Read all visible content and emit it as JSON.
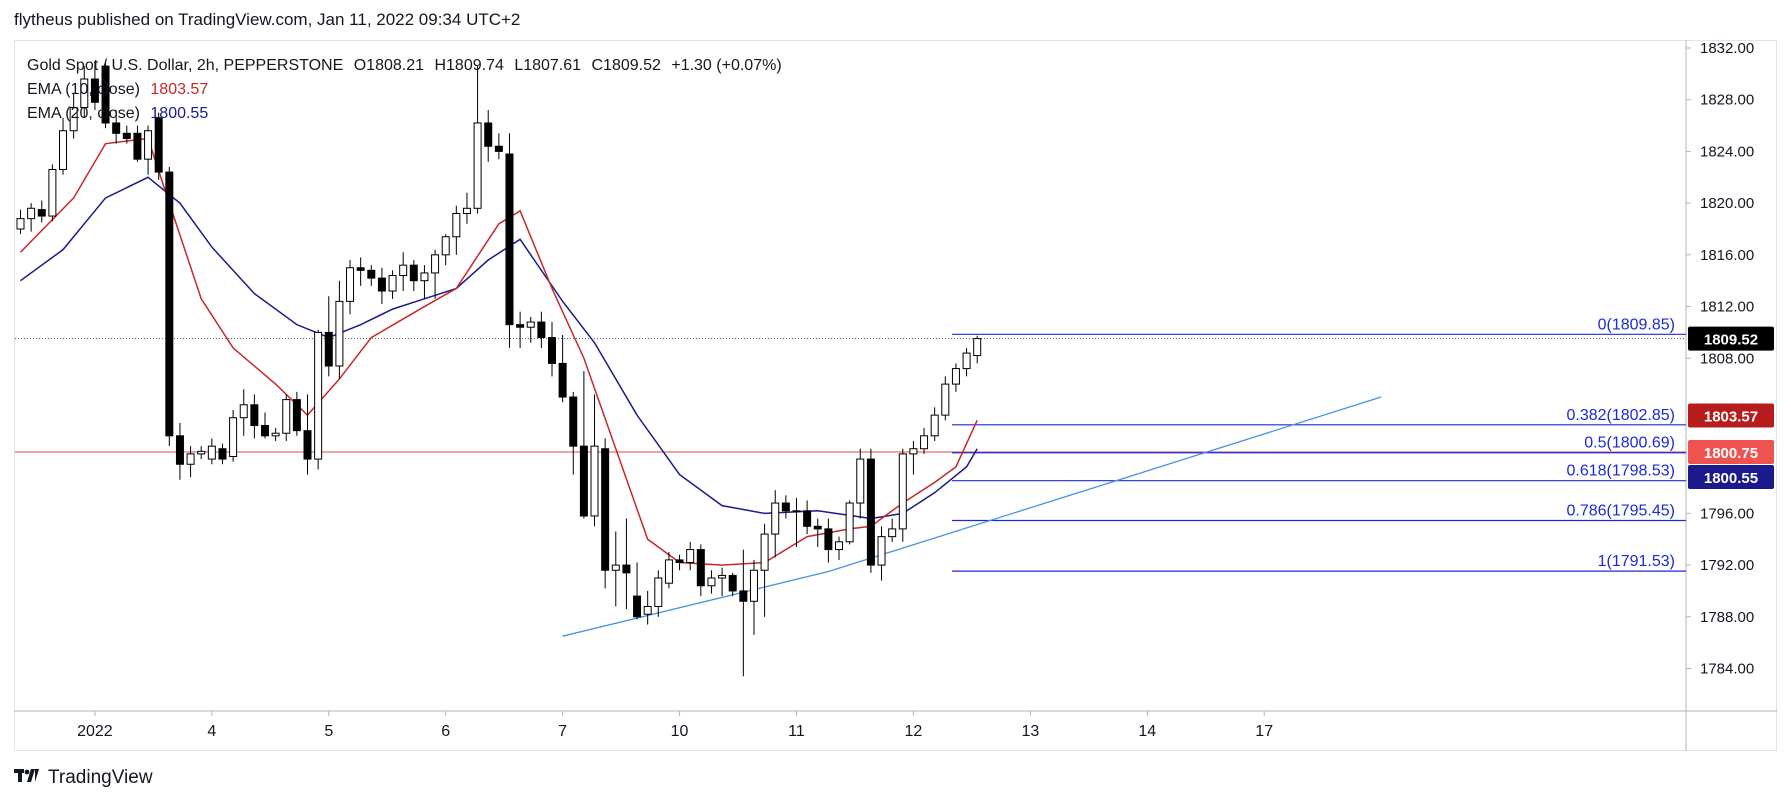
{
  "header": {
    "publish_text": "flytheus published on TradingView.com, Jan 11, 2022 09:34 UTC+2"
  },
  "legend": {
    "symbol": "Gold Spot / U.S. Dollar, 2h, PEPPERSTONE",
    "open": "O1808.21",
    "high": "H1809.74",
    "low": "L1807.61",
    "close": "C1809.52",
    "change": "+1.30 (+0.07%)",
    "ema10_label": "EMA (10, close)",
    "ema10_value": "1803.57",
    "ema20_label": "EMA (20, close)",
    "ema20_value": "1800.55"
  },
  "footer": {
    "brand": "TradingView",
    "logo_icon": "tradingview-logo-icon"
  },
  "colors": {
    "up_body": "#ffffff",
    "down_body": "#000000",
    "wick": "#000000",
    "ema10": "#c62828",
    "ema20": "#1a1a8c",
    "fib": "#1a2bd6",
    "trendline": "#4a90e2",
    "support": "#f06a6a",
    "label_last": "#000000",
    "label_ema10": "#b71c1c",
    "label_support": "#ef5350",
    "label_ema20": "#1a1a8c"
  },
  "chart_data": {
    "type": "candlestick",
    "symbol": "Gold Spot / U.S. Dollar",
    "timeframe": "2h",
    "ylim": [
      1782,
      1833
    ],
    "y_ticks": [
      "1832.00",
      "1828.00",
      "1824.00",
      "1820.00",
      "1816.00",
      "1812.00",
      "1808.00",
      "1796.00",
      "1792.00",
      "1788.00",
      "1784.00"
    ],
    "x_tick_labels": [
      "2022",
      "4",
      "5",
      "6",
      "7",
      "10",
      "11",
      "12",
      "13",
      "14",
      "17"
    ],
    "x_tick_bar_index": [
      7,
      18,
      29,
      40,
      51,
      62,
      73,
      84,
      95,
      106,
      117
    ],
    "candles": [
      [
        1818.0,
        1819.5,
        1817.6,
        1818.8
      ],
      [
        1818.8,
        1820.0,
        1817.8,
        1819.6
      ],
      [
        1819.5,
        1820.2,
        1818.5,
        1819.0
      ],
      [
        1819.0,
        1823.0,
        1818.6,
        1822.6
      ],
      [
        1822.6,
        1826.6,
        1822.2,
        1825.6
      ],
      [
        1825.6,
        1828.5,
        1825.0,
        1827.4
      ],
      [
        1827.4,
        1830.6,
        1826.6,
        1829.6
      ],
      [
        1829.6,
        1831.0,
        1827.2,
        1827.8
      ],
      [
        1830.6,
        1831.0,
        1825.8,
        1826.2
      ],
      [
        1826.2,
        1827.2,
        1824.6,
        1825.4
      ],
      [
        1825.4,
        1826.0,
        1824.6,
        1825.0
      ],
      [
        1825.4,
        1826.0,
        1823.2,
        1823.4
      ],
      [
        1823.4,
        1826.0,
        1822.2,
        1825.6
      ],
      [
        1826.6,
        1827.0,
        1821.8,
        1822.4
      ],
      [
        1822.4,
        1822.8,
        1801.2,
        1802.0
      ],
      [
        1802.0,
        1803.0,
        1798.6,
        1799.8
      ],
      [
        1799.8,
        1801.2,
        1798.8,
        1800.6
      ],
      [
        1800.6,
        1801.2,
        1800.2,
        1800.8
      ],
      [
        1800.2,
        1801.8,
        1799.8,
        1801.2
      ],
      [
        1801.0,
        1801.4,
        1799.8,
        1800.2
      ],
      [
        1800.4,
        1804.0,
        1800.0,
        1803.4
      ],
      [
        1803.4,
        1805.6,
        1802.0,
        1804.4
      ],
      [
        1804.4,
        1805.2,
        1801.8,
        1802.8
      ],
      [
        1802.8,
        1803.8,
        1801.8,
        1802.0
      ],
      [
        1802.0,
        1802.6,
        1801.6,
        1802.2
      ],
      [
        1802.2,
        1805.2,
        1801.6,
        1804.8
      ],
      [
        1804.8,
        1805.4,
        1802.0,
        1802.4
      ],
      [
        1802.4,
        1805.2,
        1799.0,
        1800.2
      ],
      [
        1800.2,
        1810.2,
        1799.4,
        1810.0
      ],
      [
        1810.0,
        1812.8,
        1806.6,
        1807.4
      ],
      [
        1807.4,
        1814.0,
        1806.4,
        1812.4
      ],
      [
        1812.4,
        1815.6,
        1811.4,
        1815.0
      ],
      [
        1815.0,
        1815.8,
        1813.6,
        1814.8
      ],
      [
        1814.8,
        1815.2,
        1813.6,
        1814.2
      ],
      [
        1814.2,
        1815.0,
        1812.2,
        1813.2
      ],
      [
        1813.2,
        1814.8,
        1812.6,
        1814.4
      ],
      [
        1814.4,
        1816.2,
        1813.2,
        1815.2
      ],
      [
        1815.2,
        1815.6,
        1813.2,
        1814.0
      ],
      [
        1814.0,
        1815.2,
        1812.6,
        1814.6
      ],
      [
        1814.6,
        1816.4,
        1812.6,
        1816.0
      ],
      [
        1816.0,
        1817.6,
        1815.2,
        1817.4
      ],
      [
        1817.4,
        1819.8,
        1816.0,
        1819.2
      ],
      [
        1819.2,
        1820.8,
        1818.4,
        1819.6
      ],
      [
        1819.6,
        1830.6,
        1819.2,
        1826.2
      ],
      [
        1826.2,
        1827.2,
        1823.2,
        1824.4
      ],
      [
        1824.4,
        1825.4,
        1823.4,
        1824.0
      ],
      [
        1823.8,
        1825.4,
        1808.8,
        1810.6
      ],
      [
        1810.6,
        1811.6,
        1808.8,
        1810.4
      ],
      [
        1810.4,
        1811.2,
        1809.2,
        1810.8
      ],
      [
        1810.8,
        1811.6,
        1808.8,
        1809.6
      ],
      [
        1809.6,
        1810.8,
        1806.6,
        1807.6
      ],
      [
        1807.6,
        1809.8,
        1804.6,
        1805.0
      ],
      [
        1805.0,
        1805.4,
        1799.0,
        1801.2
      ],
      [
        1801.2,
        1807.0,
        1795.6,
        1795.8
      ],
      [
        1795.8,
        1805.2,
        1795.0,
        1801.2
      ],
      [
        1801.0,
        1801.8,
        1790.2,
        1791.6
      ],
      [
        1791.6,
        1794.6,
        1788.8,
        1792.0
      ],
      [
        1792.0,
        1795.6,
        1788.6,
        1791.4
      ],
      [
        1789.6,
        1792.2,
        1787.8,
        1788.0
      ],
      [
        1788.2,
        1790.0,
        1787.4,
        1788.8
      ],
      [
        1788.8,
        1791.6,
        1788.0,
        1791.0
      ],
      [
        1790.6,
        1793.0,
        1790.2,
        1792.4
      ],
      [
        1792.4,
        1792.8,
        1791.6,
        1792.2
      ],
      [
        1792.2,
        1793.8,
        1791.6,
        1793.2
      ],
      [
        1793.2,
        1793.6,
        1789.6,
        1790.4
      ],
      [
        1790.4,
        1791.6,
        1789.8,
        1791.0
      ],
      [
        1791.0,
        1791.8,
        1789.6,
        1791.2
      ],
      [
        1791.2,
        1791.4,
        1789.6,
        1790.0
      ],
      [
        1790.0,
        1793.2,
        1783.4,
        1789.2
      ],
      [
        1789.2,
        1792.4,
        1786.6,
        1791.6
      ],
      [
        1791.6,
        1795.2,
        1788.0,
        1794.4
      ],
      [
        1794.4,
        1797.8,
        1792.6,
        1796.8
      ],
      [
        1796.8,
        1797.4,
        1795.6,
        1796.2
      ],
      [
        1796.2,
        1797.2,
        1793.4,
        1796.2
      ],
      [
        1796.2,
        1797.0,
        1794.4,
        1795.0
      ],
      [
        1795.0,
        1795.6,
        1793.4,
        1794.8
      ],
      [
        1794.8,
        1795.6,
        1792.2,
        1793.2
      ],
      [
        1793.2,
        1794.2,
        1792.4,
        1793.8
      ],
      [
        1793.8,
        1797.0,
        1793.6,
        1796.8
      ],
      [
        1796.8,
        1801.0,
        1795.6,
        1800.2
      ],
      [
        1800.2,
        1801.0,
        1791.4,
        1792.0
      ],
      [
        1792.0,
        1795.0,
        1790.8,
        1794.2
      ],
      [
        1794.2,
        1795.6,
        1793.8,
        1794.8
      ],
      [
        1794.8,
        1801.0,
        1793.8,
        1800.6
      ],
      [
        1800.6,
        1801.6,
        1799.0,
        1801.0
      ],
      [
        1801.0,
        1802.6,
        1800.6,
        1802.0
      ],
      [
        1802.0,
        1804.2,
        1801.6,
        1803.6
      ],
      [
        1803.6,
        1806.6,
        1803.2,
        1806.0
      ],
      [
        1806.0,
        1807.6,
        1805.4,
        1807.2
      ],
      [
        1807.2,
        1808.8,
        1806.6,
        1808.4
      ],
      [
        1808.21,
        1809.74,
        1807.61,
        1809.52
      ]
    ],
    "ema10": [
      [
        0,
        1816.2
      ],
      [
        5,
        1820.4
      ],
      [
        8,
        1824.6
      ],
      [
        12,
        1825.0
      ],
      [
        14,
        1820.0
      ],
      [
        17,
        1812.6
      ],
      [
        20,
        1808.8
      ],
      [
        24,
        1806.0
      ],
      [
        27,
        1803.6
      ],
      [
        30,
        1806.4
      ],
      [
        33,
        1809.6
      ],
      [
        38,
        1812.0
      ],
      [
        41,
        1813.4
      ],
      [
        45,
        1818.4
      ],
      [
        47,
        1819.4
      ],
      [
        50,
        1813.4
      ],
      [
        53,
        1808.0
      ],
      [
        56,
        1801.0
      ],
      [
        59,
        1794.0
      ],
      [
        62,
        1792.2
      ],
      [
        66,
        1792.0
      ],
      [
        70,
        1792.2
      ],
      [
        74,
        1794.2
      ],
      [
        78,
        1794.8
      ],
      [
        80,
        1795.0
      ],
      [
        83,
        1796.8
      ],
      [
        86,
        1798.4
      ],
      [
        88,
        1799.6
      ],
      [
        90,
        1803.2
      ]
    ],
    "ema20": [
      [
        0,
        1814.0
      ],
      [
        4,
        1816.4
      ],
      [
        8,
        1820.4
      ],
      [
        12,
        1822.0
      ],
      [
        15,
        1820.0
      ],
      [
        18,
        1816.6
      ],
      [
        22,
        1813.0
      ],
      [
        26,
        1810.6
      ],
      [
        29,
        1809.6
      ],
      [
        32,
        1810.6
      ],
      [
        35,
        1811.8
      ],
      [
        38,
        1812.6
      ],
      [
        41,
        1813.4
      ],
      [
        44,
        1815.6
      ],
      [
        47,
        1817.2
      ],
      [
        51,
        1812.4
      ],
      [
        54,
        1809.2
      ],
      [
        58,
        1803.6
      ],
      [
        62,
        1799.0
      ],
      [
        66,
        1796.6
      ],
      [
        70,
        1796.0
      ],
      [
        75,
        1796.2
      ],
      [
        80,
        1795.6
      ],
      [
        83,
        1796.0
      ],
      [
        86,
        1797.6
      ],
      [
        89,
        1799.6
      ],
      [
        90,
        1801.0
      ]
    ],
    "fib_levels": [
      {
        "ratio": "0",
        "price": 1809.85,
        "label": "0(1809.85)"
      },
      {
        "ratio": "0.382",
        "price": 1802.85,
        "label": "0.382(1802.85)"
      },
      {
        "ratio": "0.5",
        "price": 1800.69,
        "label": "0.5(1800.69)"
      },
      {
        "ratio": "0.618",
        "price": 1798.53,
        "label": "0.618(1798.53)"
      },
      {
        "ratio": "0.786",
        "price": 1795.45,
        "label": "0.786(1795.45)"
      },
      {
        "ratio": "1",
        "price": 1791.53,
        "label": "1(1791.53)"
      }
    ],
    "trendline": [
      [
        51,
        1786.5
      ],
      [
        76,
        1791.5
      ],
      [
        128,
        1805.0
      ]
    ],
    "support_level": 1800.75,
    "price_labels": [
      {
        "text": "1809.52",
        "price": 1809.52,
        "kind": "last"
      },
      {
        "text": "1803.57",
        "price": 1803.57,
        "kind": "ema10"
      },
      {
        "text": "1800.75",
        "price": 1800.75,
        "kind": "support"
      },
      {
        "text": "1800.55",
        "price": 1800.55,
        "kind": "ema20"
      }
    ]
  }
}
